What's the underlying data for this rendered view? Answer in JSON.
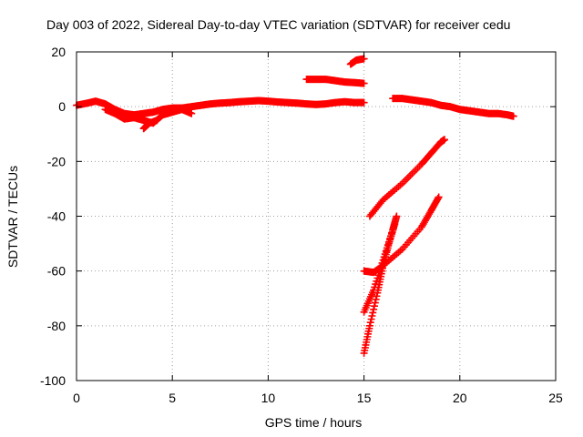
{
  "chart_data": {
    "type": "scatter",
    "title": "Day 003 of 2022, Sidereal Day-to-day VTEC variation (SDTVAR) for receiver cedu",
    "xlabel": "GPS time / hours",
    "ylabel": "SDTVAR / TECUs",
    "xlim": [
      0,
      25
    ],
    "ylim": [
      -100,
      20
    ],
    "xticks": [
      0,
      5,
      10,
      15,
      20,
      25
    ],
    "yticks": [
      -100,
      -80,
      -60,
      -40,
      -20,
      0,
      20
    ],
    "grid": true,
    "marker": "+",
    "color": "#ff0000",
    "series": [
      {
        "points": [
          [
            0.0,
            0.5
          ],
          [
            0.5,
            1.2
          ],
          [
            1.0,
            2.0
          ],
          [
            1.5,
            1.0
          ],
          [
            2.0,
            -1.0
          ],
          [
            2.5,
            -2.5
          ],
          [
            3.0,
            -3.0
          ],
          [
            3.5,
            -2.5
          ],
          [
            4.0,
            -2.0
          ],
          [
            4.5,
            -1.0
          ],
          [
            5.0,
            -0.5
          ],
          [
            5.5,
            -0.5
          ],
          [
            6.0,
            0.0
          ],
          [
            6.5,
            0.5
          ],
          [
            7.0,
            1.0
          ],
          [
            7.5,
            1.3
          ],
          [
            8.0,
            1.5
          ],
          [
            8.5,
            1.8
          ],
          [
            9.0,
            2.0
          ],
          [
            9.5,
            2.2
          ],
          [
            10.0,
            2.0
          ],
          [
            10.5,
            1.7
          ],
          [
            11.0,
            1.5
          ],
          [
            11.5,
            1.3
          ],
          [
            12.0,
            1.0
          ],
          [
            12.5,
            0.8
          ],
          [
            13.0,
            1.0
          ],
          [
            13.5,
            1.5
          ],
          [
            14.0,
            1.8
          ],
          [
            14.5,
            1.5
          ],
          [
            15.0,
            1.5
          ]
        ]
      },
      {
        "points": [
          [
            1.5,
            -1.0
          ],
          [
            2.0,
            -2.5
          ],
          [
            2.5,
            -4.5
          ],
          [
            3.0,
            -4.0
          ],
          [
            3.5,
            -5.0
          ],
          [
            4.0,
            -6.0
          ],
          [
            4.5,
            -3.0
          ],
          [
            5.0,
            -2.0
          ],
          [
            5.5,
            -1.0
          ],
          [
            6.0,
            -2.5
          ]
        ]
      },
      {
        "points": [
          [
            3.5,
            -8.0
          ],
          [
            3.8,
            -6.0
          ],
          [
            4.2,
            -5.0
          ]
        ]
      },
      {
        "points": [
          [
            12.0,
            10.0
          ],
          [
            12.5,
            10.0
          ],
          [
            13.0,
            10.0
          ],
          [
            13.5,
            9.5
          ],
          [
            14.0,
            9.0
          ],
          [
            14.5,
            8.8
          ],
          [
            15.0,
            8.5
          ]
        ]
      },
      {
        "points": [
          [
            14.3,
            15.5
          ],
          [
            14.6,
            17.0
          ],
          [
            15.0,
            17.5
          ]
        ]
      },
      {
        "points": [
          [
            16.5,
            3.0
          ],
          [
            17.0,
            3.0
          ],
          [
            17.5,
            2.5
          ],
          [
            18.0,
            2.0
          ],
          [
            18.5,
            1.5
          ],
          [
            19.0,
            0.5
          ],
          [
            19.5,
            0.0
          ],
          [
            20.0,
            -1.0
          ],
          [
            20.5,
            -1.5
          ],
          [
            21.0,
            -2.0
          ],
          [
            21.5,
            -2.5
          ],
          [
            22.0,
            -2.5
          ],
          [
            22.5,
            -3.0
          ],
          [
            22.8,
            -3.5
          ]
        ]
      },
      {
        "points": [
          [
            15.3,
            -40.0
          ],
          [
            16.0,
            -34.0
          ],
          [
            17.0,
            -28.0
          ],
          [
            18.0,
            -21.0
          ],
          [
            18.5,
            -17.0
          ],
          [
            19.0,
            -13.0
          ],
          [
            19.2,
            -12.0
          ]
        ]
      },
      {
        "points": [
          [
            15.0,
            -60.0
          ],
          [
            15.5,
            -60.5
          ],
          [
            16.0,
            -58.0
          ],
          [
            17.0,
            -52.0
          ],
          [
            18.0,
            -44.0
          ],
          [
            18.5,
            -38.0
          ],
          [
            18.9,
            -33.0
          ]
        ]
      },
      {
        "points": [
          [
            15.0,
            -75.0
          ],
          [
            15.5,
            -67.0
          ],
          [
            16.0,
            -56.0
          ],
          [
            16.5,
            -45.0
          ],
          [
            16.7,
            -40.0
          ]
        ]
      },
      {
        "points": [
          [
            15.0,
            -90.0
          ],
          [
            15.3,
            -80.0
          ],
          [
            15.7,
            -68.0
          ],
          [
            16.0,
            -58.0
          ],
          [
            16.3,
            -50.0
          ],
          [
            16.6,
            -43.0
          ]
        ]
      }
    ]
  }
}
